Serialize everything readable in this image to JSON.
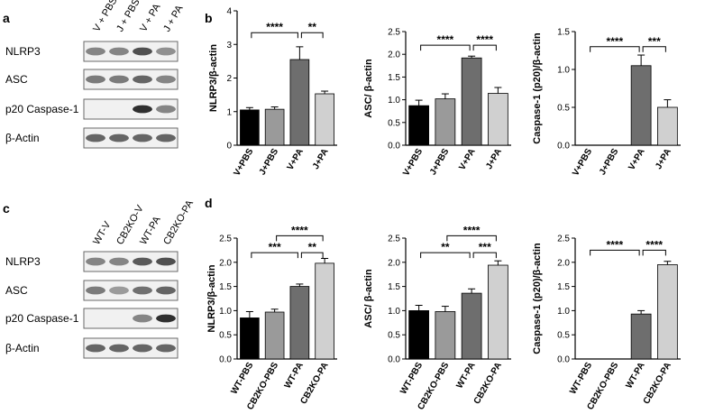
{
  "panels": {
    "a": "a",
    "b": "b",
    "c": "c",
    "d": "d"
  },
  "blot_a": {
    "lanes": [
      "V + PBS",
      "J + PBS",
      "V + PA",
      "J + PA"
    ],
    "rows": [
      "NLRP3",
      "ASC",
      "p20 Caspase-1",
      "β-Actin"
    ],
    "intensity": [
      [
        0.45,
        0.45,
        0.7,
        0.4
      ],
      [
        0.5,
        0.5,
        0.6,
        0.45
      ],
      [
        0,
        0,
        0.85,
        0.45
      ],
      [
        0.6,
        0.6,
        0.6,
        0.6
      ]
    ]
  },
  "blot_c": {
    "lanes": [
      "WT-V",
      "CB2KO-V",
      "WT-PA",
      "CB2KO-PA"
    ],
    "rows": [
      "NLRP3",
      "ASC",
      "p20 Caspase-1",
      "β-Actin"
    ],
    "intensity": [
      [
        0.45,
        0.45,
        0.65,
        0.7
      ],
      [
        0.5,
        0.35,
        0.55,
        0.6
      ],
      [
        0,
        0,
        0.45,
        0.85
      ],
      [
        0.6,
        0.6,
        0.6,
        0.6
      ]
    ]
  },
  "chart_data": [
    {
      "type": "bar",
      "panel": "b",
      "categories": [
        "V+PBS",
        "J+PBS",
        "V+PA",
        "J+PA"
      ],
      "values": [
        1.05,
        1.07,
        2.55,
        1.53
      ],
      "errors": [
        0.07,
        0.07,
        0.38,
        0.08
      ],
      "colors": [
        "#000000",
        "#9a9a9a",
        "#6e6e6e",
        "#d0d0d0"
      ],
      "ylabel": "NLRP3/β-actin",
      "ylim": [
        0,
        4
      ],
      "yticks": [
        "0",
        "1",
        "2",
        "3",
        "4"
      ],
      "significance": [
        {
          "from": 0,
          "to": 2,
          "label": "****",
          "y": 3.35
        },
        {
          "from": 2,
          "to": 3,
          "label": "**",
          "y": 3.35
        }
      ]
    },
    {
      "type": "bar",
      "panel": "b",
      "categories": [
        "V+PBS",
        "J+PBS",
        "V+PA",
        "J+PA"
      ],
      "values": [
        0.87,
        1.02,
        1.92,
        1.14
      ],
      "errors": [
        0.12,
        0.11,
        0.04,
        0.13
      ],
      "colors": [
        "#000000",
        "#9a9a9a",
        "#6e6e6e",
        "#d0d0d0"
      ],
      "ylabel": "ASC/ β-actin",
      "ylim": [
        0,
        2.5
      ],
      "yticks": [
        "0.0",
        "0.5",
        "1.0",
        "1.5",
        "2.0",
        "2.5"
      ],
      "significance": [
        {
          "from": 0,
          "to": 2,
          "label": "****",
          "y": 2.2
        },
        {
          "from": 2,
          "to": 3,
          "label": "****",
          "y": 2.2
        }
      ]
    },
    {
      "type": "bar",
      "panel": "b",
      "categories": [
        "V+PBS",
        "J+PBS",
        "V+PA",
        "J+PA"
      ],
      "values": [
        0,
        0,
        1.05,
        0.5
      ],
      "errors": [
        0,
        0,
        0.14,
        0.1
      ],
      "colors": [
        "#000000",
        "#9a9a9a",
        "#6e6e6e",
        "#d0d0d0"
      ],
      "ylabel": "Caspase-1 (p20)/β-actin",
      "ylim": [
        0,
        1.5
      ],
      "yticks": [
        "0.0",
        "0.5",
        "1.0",
        "1.5"
      ],
      "significance": [
        {
          "from": 0,
          "to": 2,
          "label": "****",
          "y": 1.3
        },
        {
          "from": 2,
          "to": 3,
          "label": "***",
          "y": 1.3
        }
      ]
    },
    {
      "type": "bar",
      "panel": "d",
      "categories": [
        "WT-PBS",
        "CB2KO-PBS",
        "WT-PA",
        "CB2KO-PA"
      ],
      "values": [
        0.85,
        0.97,
        1.5,
        1.98
      ],
      "errors": [
        0.13,
        0.06,
        0.05,
        0.1
      ],
      "colors": [
        "#000000",
        "#9a9a9a",
        "#6e6e6e",
        "#d0d0d0"
      ],
      "ylabel": "NLRP3/β-actin",
      "ylim": [
        0,
        2.5
      ],
      "yticks": [
        "0.0",
        "0.5",
        "1.0",
        "1.5",
        "2.0",
        "2.5"
      ],
      "significance": [
        {
          "from": 0,
          "to": 2,
          "label": "***",
          "y": 2.2
        },
        {
          "from": 2,
          "to": 3,
          "label": "**",
          "y": 2.2
        },
        {
          "from": 1,
          "to": 3,
          "label": "****",
          "y": 2.55
        }
      ]
    },
    {
      "type": "bar",
      "panel": "d",
      "categories": [
        "WT-PBS",
        "CB2KO-PBS",
        "WT-PA",
        "CB2KO-PA"
      ],
      "values": [
        1.0,
        0.98,
        1.36,
        1.94
      ],
      "errors": [
        0.11,
        0.11,
        0.09,
        0.09
      ],
      "colors": [
        "#000000",
        "#9a9a9a",
        "#6e6e6e",
        "#d0d0d0"
      ],
      "ylabel": "ASC/ β-actin",
      "ylim": [
        0,
        2.5
      ],
      "yticks": [
        "0.0",
        "0.5",
        "1.0",
        "1.5",
        "2.0",
        "2.5"
      ],
      "significance": [
        {
          "from": 0,
          "to": 2,
          "label": "**",
          "y": 2.2
        },
        {
          "from": 2,
          "to": 3,
          "label": "***",
          "y": 2.2
        },
        {
          "from": 1,
          "to": 3,
          "label": "****",
          "y": 2.55
        }
      ]
    },
    {
      "type": "bar",
      "panel": "d",
      "categories": [
        "WT-PBS",
        "CB2KO-PBS",
        "WT-PA",
        "CB2KO-PA"
      ],
      "values": [
        0,
        0,
        0.93,
        1.95
      ],
      "errors": [
        0,
        0,
        0.07,
        0.07
      ],
      "colors": [
        "#000000",
        "#9a9a9a",
        "#6e6e6e",
        "#d0d0d0"
      ],
      "ylabel": "Caspase-1 (p20)/β-actin",
      "ylim": [
        0,
        2.5
      ],
      "yticks": [
        "0.0",
        "0.5",
        "1.0",
        "1.5",
        "2.0",
        "2.5"
      ],
      "significance": [
        {
          "from": 0,
          "to": 2,
          "label": "****",
          "y": 2.25
        },
        {
          "from": 2,
          "to": 3,
          "label": "****",
          "y": 2.25
        }
      ]
    }
  ]
}
